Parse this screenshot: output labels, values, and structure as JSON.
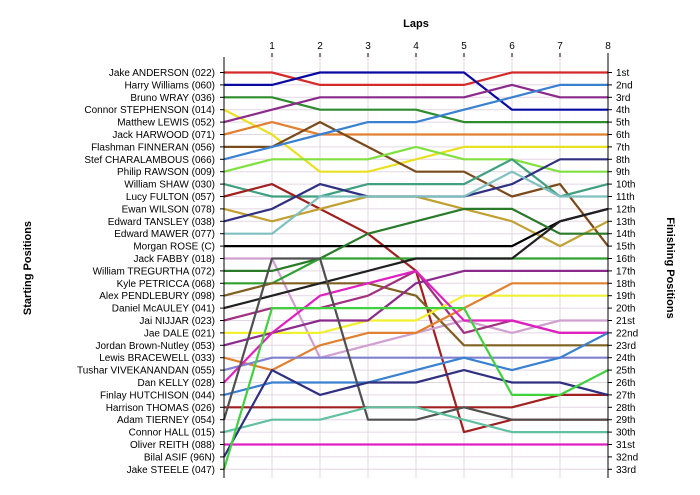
{
  "chart_data": {
    "type": "line",
    "title": "",
    "xlabel": "Laps",
    "ylabel_left": "Starting Positions",
    "ylabel_right": "Finishing Positions",
    "x": [
      0,
      1,
      2,
      3,
      4,
      5,
      6,
      7,
      8
    ],
    "x_ticks": [
      "1",
      "2",
      "3",
      "4",
      "5",
      "6",
      "7",
      "8"
    ],
    "y_range": [
      1,
      33
    ],
    "y_inverted": true,
    "grid": true,
    "start_labels": [
      "Jake ANDERSON (022)",
      "Harry Williams (060)",
      "Bruno WRAY (036)",
      "Connor STEPHENSON (014)",
      "Matthew LEWIS (052)",
      "Jack HARWOOD (071)",
      "Flashman FINNERAN (056)",
      "Stef CHARALAMBOUS (066)",
      "Philip RAWSON (009)",
      "William SHAW (030)",
      "Lucy FULTON (057)",
      "Ewan WILSON (078)",
      "Edward TANSLEY (038)",
      "Edward MAWER (077)",
      "Morgan ROSE (C)",
      "Jack FABBY (018)",
      "William TREGURTHA (072)",
      "Kyle PETRICCA (068)",
      "Alex PENDLEBURY (098)",
      "Daniel McAULEY (041)",
      "Jai NIJJAR (023)",
      "Jae DALE (021)",
      "Jordan Brown-Nutley (053)",
      "Lewis BRACEWELL (033)",
      "Tushar VIVEKANANDAN (055)",
      "Dan KELLY (028)",
      "Finlay HUTCHISON (044)",
      "Harrison THOMAS (026)",
      "Adam TIERNEY (054)",
      "Connor HALL (015)",
      "Oliver REITH (088)",
      "Bilal ASIF (96N)",
      "Jake STEELE (047)"
    ],
    "finish_labels": [
      "1st",
      "2nd",
      "3rd",
      "4th",
      "5th",
      "6th",
      "7th",
      "8th",
      "9th",
      "10th",
      "11th",
      "12th",
      "13th",
      "14th",
      "15th",
      "16th",
      "17th",
      "18th",
      "19th",
      "20th",
      "21st",
      "22nd",
      "23rd",
      "24th",
      "25th",
      "26th",
      "27th",
      "28th",
      "29th",
      "30th",
      "31st",
      "32nd",
      "33rd"
    ],
    "series": [
      {
        "color": "#d42a2a",
        "values": [
          1,
          1,
          2,
          2,
          2,
          2,
          1,
          1,
          1
        ]
      },
      {
        "color": "#0a0aa0",
        "values": [
          2,
          2,
          1,
          1,
          1,
          1,
          4,
          4,
          4
        ]
      },
      {
        "color": "#2e8b2e",
        "values": [
          3,
          3,
          4,
          4,
          4,
          5,
          5,
          5,
          5
        ]
      },
      {
        "color": "#e8e020",
        "values": [
          4,
          6,
          9,
          9,
          8,
          7,
          7,
          7,
          7
        ]
      },
      {
        "color": "#8a2a8a",
        "values": [
          5,
          4,
          3,
          3,
          3,
          3,
          2,
          3,
          3
        ]
      },
      {
        "color": "#e08030",
        "values": [
          6,
          5,
          6,
          6,
          6,
          6,
          6,
          6,
          6
        ]
      },
      {
        "color": "#7a4a1a",
        "values": [
          7,
          7,
          5,
          7,
          9,
          9,
          11,
          10,
          15
        ]
      },
      {
        "color": "#3a80d0",
        "values": [
          8,
          7,
          6,
          5,
          5,
          4,
          3,
          2,
          2
        ]
      },
      {
        "color": "#80e040",
        "values": [
          9,
          8,
          8,
          8,
          7,
          8,
          8,
          9,
          9
        ]
      },
      {
        "color": "#40a080",
        "values": [
          10,
          11,
          11,
          10,
          10,
          10,
          8,
          11,
          10
        ]
      },
      {
        "color": "#a02020",
        "values": [
          11,
          10,
          12,
          14,
          17,
          30,
          29,
          29,
          29
        ]
      },
      {
        "color": "#c0a030",
        "values": [
          12,
          13,
          12,
          11,
          11,
          12,
          13,
          15,
          13
        ]
      },
      {
        "color": "#303080",
        "values": [
          13,
          12,
          10,
          11,
          11,
          11,
          10,
          8,
          8
        ]
      },
      {
        "color": "#80c0c0",
        "values": [
          14,
          14,
          11,
          11,
          11,
          11,
          9,
          11,
          11
        ]
      },
      {
        "color": "#000000",
        "values": [
          15,
          15,
          15,
          15,
          15,
          15,
          15,
          13,
          12
        ]
      },
      {
        "color": "#d0a0d0",
        "values": [
          16,
          16,
          24,
          23,
          22,
          21,
          22,
          21,
          21
        ]
      },
      {
        "color": "#2a7a2a",
        "values": [
          17,
          17,
          16,
          14,
          13,
          12,
          12,
          14,
          14
        ]
      },
      {
        "color": "#30a030",
        "values": [
          18,
          18,
          16,
          16,
          16,
          16,
          16,
          16,
          16
        ]
      },
      {
        "color": "#806020",
        "values": [
          19,
          18,
          18,
          18,
          19,
          23,
          23,
          23,
          23
        ]
      },
      {
        "color": "#202020",
        "values": [
          20,
          19,
          18,
          17,
          16,
          16,
          16,
          13,
          12
        ]
      },
      {
        "color": "#a03080",
        "values": [
          21,
          20,
          20,
          19,
          17,
          22,
          21,
          22,
          22
        ]
      },
      {
        "color": "#f0f030",
        "values": [
          22,
          22,
          22,
          21,
          21,
          19,
          19,
          19,
          19
        ]
      },
      {
        "color": "#8a2a8a",
        "values": [
          23,
          22,
          21,
          21,
          18,
          17,
          17,
          17,
          17
        ]
      },
      {
        "color": "#e08030",
        "values": [
          24,
          25,
          23,
          22,
          22,
          20,
          18,
          18,
          18
        ]
      },
      {
        "color": "#8080d0",
        "values": [
          25,
          24,
          24,
          24,
          24,
          24,
          24,
          24,
          24
        ]
      },
      {
        "color": "#e020c0",
        "values": [
          26,
          22,
          19,
          18,
          17,
          21,
          21,
          22,
          22
        ]
      },
      {
        "color": "#3a80d0",
        "values": [
          27,
          26,
          26,
          26,
          25,
          24,
          25,
          24,
          22
        ]
      },
      {
        "color": "#a02020",
        "values": [
          28,
          28,
          28,
          28,
          28,
          28,
          28,
          27,
          27
        ]
      },
      {
        "color": "#505050",
        "values": [
          29,
          16,
          16,
          29,
          29,
          28,
          29,
          29,
          29
        ]
      },
      {
        "color": "#60c0a0",
        "values": [
          30,
          29,
          29,
          28,
          28,
          29,
          30,
          30,
          30
        ]
      },
      {
        "color": "#e020c0",
        "values": [
          31,
          31,
          31,
          31,
          31,
          31,
          31,
          31,
          31
        ]
      },
      {
        "color": "#303080",
        "values": [
          32,
          25,
          27,
          26,
          26,
          25,
          26,
          26,
          27
        ]
      },
      {
        "color": "#40d040",
        "values": [
          33,
          20,
          20,
          20,
          20,
          20,
          27,
          27,
          25
        ]
      }
    ]
  }
}
